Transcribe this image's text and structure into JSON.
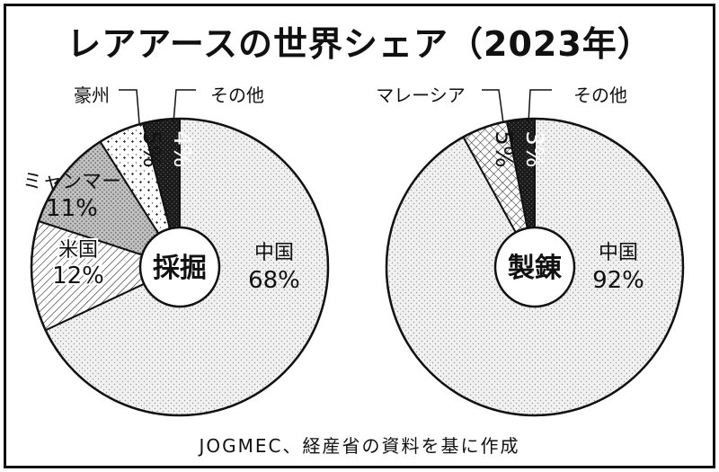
{
  "title": "レアアースの世界シェア（2023年）",
  "source": "JOGMEC、経産省の資料を基に作成",
  "chart_data": [
    {
      "type": "pie",
      "title": "",
      "center_label": "採掘",
      "unit": "%",
      "slices": [
        {
          "label": "中国",
          "value": 68,
          "pattern": "light-dots"
        },
        {
          "label": "米国",
          "value": 12,
          "pattern": "diagonal-hatch"
        },
        {
          "label": "ミャンマー",
          "value": 11,
          "pattern": "gray-dots"
        },
        {
          "label": "豪州",
          "value": 5,
          "pattern": "cross-dots"
        },
        {
          "label": "その他",
          "value": 4,
          "pattern": "dark-dots"
        }
      ]
    },
    {
      "type": "pie",
      "title": "",
      "center_label": "製錬",
      "unit": "%",
      "slices": [
        {
          "label": "中国",
          "value": 92,
          "pattern": "light-dots"
        },
        {
          "label": "マレーシア",
          "value": 5,
          "pattern": "crosshatch"
        },
        {
          "label": "その他",
          "value": 3,
          "pattern": "dark-dots"
        }
      ]
    }
  ]
}
